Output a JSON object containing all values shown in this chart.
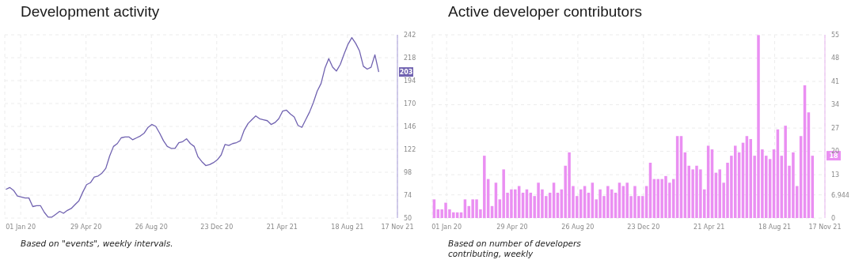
{
  "chart_data": [
    {
      "type": "line",
      "title": "Development activity",
      "x": [
        "2019-12-05",
        "2019-12-12",
        "2019-12-19",
        "2019-12-26",
        "2020-01-02",
        "2020-01-09",
        "2020-01-16",
        "2020-01-23",
        "2020-01-30",
        "2020-02-06",
        "2020-02-13",
        "2020-02-20",
        "2020-02-27",
        "2020-03-05",
        "2020-03-12",
        "2020-03-19",
        "2020-03-26",
        "2020-04-02",
        "2020-04-09",
        "2020-04-16",
        "2020-04-23",
        "2020-04-30",
        "2020-05-07",
        "2020-05-14",
        "2020-05-21",
        "2020-05-28",
        "2020-06-04",
        "2020-06-11",
        "2020-06-18",
        "2020-06-25",
        "2020-07-02",
        "2020-07-09",
        "2020-07-16",
        "2020-07-23",
        "2020-07-30",
        "2020-08-06",
        "2020-08-13",
        "2020-08-20",
        "2020-08-27",
        "2020-09-03",
        "2020-09-10",
        "2020-09-17",
        "2020-09-24",
        "2020-10-01",
        "2020-10-08",
        "2020-10-15",
        "2020-10-22",
        "2020-10-29",
        "2020-11-05",
        "2020-11-12",
        "2020-11-19",
        "2020-11-26",
        "2020-12-03",
        "2020-12-10",
        "2020-12-17",
        "2020-12-24",
        "2020-12-31",
        "2021-01-07",
        "2021-01-14",
        "2021-01-21",
        "2021-01-28",
        "2021-02-04",
        "2021-02-11",
        "2021-02-18",
        "2021-02-25",
        "2021-03-04",
        "2021-03-11",
        "2021-03-18",
        "2021-03-25",
        "2021-04-01",
        "2021-04-08",
        "2021-04-15",
        "2021-04-22",
        "2021-04-29",
        "2021-05-06",
        "2021-05-13",
        "2021-05-20",
        "2021-05-27",
        "2021-06-03",
        "2021-06-10",
        "2021-06-17",
        "2021-06-24",
        "2021-07-01",
        "2021-07-08",
        "2021-07-15",
        "2021-07-22",
        "2021-07-29",
        "2021-08-05",
        "2021-08-12",
        "2021-08-19",
        "2021-08-26",
        "2021-09-02",
        "2021-09-09",
        "2021-09-16",
        "2021-09-23",
        "2021-09-30",
        "2021-10-07",
        "2021-10-14"
      ],
      "series": [
        {
          "color": "#7062b0",
          "values": [
            80,
            82,
            79,
            73,
            72,
            71,
            71,
            62,
            63,
            63,
            56,
            51,
            51,
            54,
            57,
            55,
            58,
            60,
            64,
            68,
            77,
            85,
            87,
            93,
            94,
            97,
            102,
            115,
            125,
            128,
            134,
            135,
            135,
            132,
            134,
            136,
            139,
            145,
            148,
            146,
            139,
            131,
            125,
            123,
            123,
            129,
            130,
            133,
            128,
            125,
            114,
            109,
            105,
            106,
            108,
            111,
            116,
            127,
            126,
            128,
            129,
            131,
            142,
            149,
            153,
            157,
            154,
            153,
            152,
            148,
            150,
            154,
            162,
            163,
            159,
            156,
            147,
            145,
            153,
            161,
            171,
            183,
            191,
            207,
            217,
            208,
            204,
            211,
            222,
            232,
            239,
            233,
            225,
            209,
            206,
            208,
            221,
            203
          ]
        }
      ],
      "xlim": [
        "2019-12-03",
        "2021-11-17"
      ],
      "xticks": [
        {
          "value": "2020-01-01",
          "label": "01 Jan 20"
        },
        {
          "value": "2020-04-29",
          "label": "29 Apr 20"
        },
        {
          "value": "2020-08-26",
          "label": "26 Aug 20"
        },
        {
          "value": "2020-12-23",
          "label": "23 Dec 20"
        },
        {
          "value": "2021-04-21",
          "label": "21 Apr 21"
        },
        {
          "value": "2021-08-18",
          "label": "18 Aug 21"
        },
        {
          "value": "2021-11-17",
          "label": "17 Nov 21"
        }
      ],
      "ylim": [
        50,
        242
      ],
      "yticks": [
        50,
        74,
        98,
        122,
        146,
        170,
        194,
        218,
        242
      ],
      "grid": true,
      "annotations": [
        "203",
        "Based on \"events\", weekly intervals."
      ]
    },
    {
      "type": "bar",
      "title": "Active developer contributors",
      "x": [
        "2019-12-09",
        "2019-12-16",
        "2019-12-23",
        "2019-12-30",
        "2020-01-06",
        "2020-01-13",
        "2020-01-20",
        "2020-01-27",
        "2020-02-03",
        "2020-02-10",
        "2020-02-17",
        "2020-02-24",
        "2020-03-02",
        "2020-03-09",
        "2020-03-16",
        "2020-03-23",
        "2020-03-30",
        "2020-04-06",
        "2020-04-13",
        "2020-04-20",
        "2020-04-27",
        "2020-05-04",
        "2020-05-11",
        "2020-05-18",
        "2020-05-25",
        "2020-06-01",
        "2020-06-08",
        "2020-06-15",
        "2020-06-22",
        "2020-06-29",
        "2020-07-06",
        "2020-07-13",
        "2020-07-20",
        "2020-07-27",
        "2020-08-03",
        "2020-08-10",
        "2020-08-17",
        "2020-08-24",
        "2020-08-31",
        "2020-09-07",
        "2020-09-14",
        "2020-09-21",
        "2020-09-28",
        "2020-10-05",
        "2020-10-12",
        "2020-10-19",
        "2020-10-26",
        "2020-11-02",
        "2020-11-09",
        "2020-11-16",
        "2020-11-23",
        "2020-11-30",
        "2020-12-07",
        "2020-12-14",
        "2020-12-21",
        "2020-12-28",
        "2021-01-04",
        "2021-01-11",
        "2021-01-18",
        "2021-01-25",
        "2021-02-01",
        "2021-02-08",
        "2021-02-15",
        "2021-02-22",
        "2021-03-01",
        "2021-03-08",
        "2021-03-15",
        "2021-03-22",
        "2021-03-29",
        "2021-04-05",
        "2021-04-12",
        "2021-04-19",
        "2021-04-26",
        "2021-05-03",
        "2021-05-10",
        "2021-05-17",
        "2021-05-24",
        "2021-05-31",
        "2021-06-07",
        "2021-06-14",
        "2021-06-21",
        "2021-06-28",
        "2021-07-05",
        "2021-07-12",
        "2021-07-19",
        "2021-07-26",
        "2021-08-02",
        "2021-08-09",
        "2021-08-16",
        "2021-08-23",
        "2021-08-30",
        "2021-09-06",
        "2021-09-13",
        "2021-09-20",
        "2021-09-27",
        "2021-10-04",
        "2021-10-11",
        "2021-10-18",
        "2021-10-25"
      ],
      "series": [
        {
          "color": "#ea8ff2",
          "values": [
            5.6,
            2.6,
            2.6,
            4.6,
            2.6,
            1.7,
            1.7,
            1.7,
            5.6,
            3.6,
            5.6,
            5.6,
            2.6,
            18.7,
            11.7,
            3.6,
            10.6,
            5.6,
            14.6,
            7.6,
            8.6,
            8.6,
            9.6,
            7.6,
            8.6,
            7.6,
            6.6,
            10.6,
            8.6,
            6.6,
            7.6,
            10.6,
            7.6,
            8.6,
            15.7,
            19.7,
            9.6,
            6.6,
            8.6,
            9.6,
            7.6,
            10.6,
            5.6,
            8.6,
            6.6,
            9.6,
            8.6,
            7.6,
            10.6,
            9.6,
            10.6,
            6.6,
            9.6,
            6.6,
            6.6,
            9.6,
            16.6,
            11.7,
            11.7,
            11.7,
            12.6,
            10.6,
            11.7,
            24.6,
            24.6,
            19.7,
            15.7,
            14.6,
            15.7,
            14.6,
            8.6,
            21.7,
            20.6,
            13.6,
            14.6,
            10.6,
            16.6,
            18.7,
            21.7,
            19.7,
            22.6,
            24.6,
            23.7,
            18.7,
            54.9,
            20.6,
            18.7,
            17.7,
            20.6,
            26.6,
            18.7,
            27.7,
            15.7,
            19.7,
            9.6,
            24.6,
            39.8,
            31.7,
            18.7
          ]
        }
      ],
      "xlim": [
        "2019-12-06",
        "2021-11-17"
      ],
      "xticks": [
        {
          "value": "2020-01-01",
          "label": "01 Jan 20"
        },
        {
          "value": "2020-04-29",
          "label": "29 Apr 20"
        },
        {
          "value": "2020-08-26",
          "label": "26 Aug 20"
        },
        {
          "value": "2020-12-23",
          "label": "23 Dec 20"
        },
        {
          "value": "2021-04-21",
          "label": "21 Apr 21"
        },
        {
          "value": "2021-08-18",
          "label": "18 Aug 21"
        },
        {
          "value": "2021-11-17",
          "label": "17 Nov 21"
        }
      ],
      "ylim": [
        0,
        55
      ],
      "yticks": [
        0,
        6.944,
        13,
        20,
        27,
        34,
        41,
        48,
        55
      ],
      "grid": true,
      "annotations": [
        "18",
        "Based on number of developers contributing, weekly"
      ]
    }
  ]
}
